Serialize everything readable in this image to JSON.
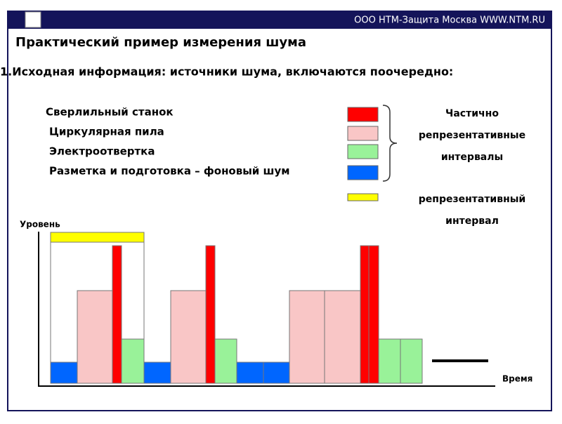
{
  "header": {
    "company": "ООО  НТМ-Защита  Москва  WWW.NTM.RU"
  },
  "title": "Практический пример измерения шума",
  "subtitle": "1.Исходная информация: источники шума, включаются поочередно:",
  "sources": [
    "Сверлильный станок",
    "Циркулярная пила",
    "Электроотвертка",
    "Разметка и подготовка – фоновый шум"
  ],
  "partial_note": [
    "Частично",
    "репрезентативные",
    "интервалы"
  ],
  "full_note": [
    "репрезентативный",
    "интервал"
  ],
  "diagram": {
    "y_label": "Уровень",
    "x_label": "Время"
  }
}
